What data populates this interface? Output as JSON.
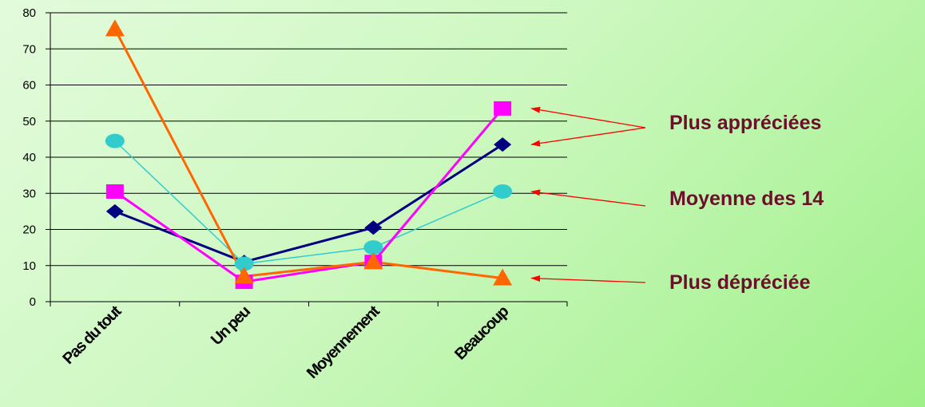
{
  "chart_data": {
    "type": "line",
    "categories": [
      "Pas du tout",
      "Un peu",
      "Moyennement",
      "Beaucoup"
    ],
    "ylim": [
      0,
      80
    ],
    "yticks": [
      0,
      10,
      20,
      30,
      40,
      50,
      60,
      70,
      80
    ],
    "grid": true,
    "title": "",
    "xlabel": "",
    "ylabel": "",
    "series": [
      {
        "values": [
          25,
          11,
          20.5,
          43.5
        ],
        "color": "#000080",
        "marker": "diamond",
        "stroke_width": 3
      },
      {
        "values": [
          44.5,
          10.5,
          15,
          30.5
        ],
        "color": "#33cccc",
        "marker": "circle",
        "stroke_width": 1.5
      },
      {
        "values": [
          30.5,
          5.5,
          11,
          53.5
        ],
        "color": "#ff00ff",
        "marker": "square",
        "stroke_width": 3
      },
      {
        "values": [
          75.5,
          7,
          11,
          6.5
        ],
        "color": "#ff6600",
        "marker": "triangle",
        "stroke_width": 3
      }
    ]
  },
  "annotations": [
    {
      "text": "Plus appréciées",
      "points_to": [
        {
          "category": "Beaucoup",
          "series": 2
        },
        {
          "category": "Beaucoup",
          "series": 0
        }
      ]
    },
    {
      "text": "Moyenne des 14",
      "points_to": [
        {
          "category": "Beaucoup",
          "series": 1
        }
      ]
    },
    {
      "text": "Plus dépréciée",
      "points_to": [
        {
          "category": "Beaucoup",
          "series": 3
        }
      ]
    }
  ],
  "colors": {
    "annotation_text": "#6b0f2a",
    "arrow": "#ff0000",
    "grid": "#000000"
  }
}
